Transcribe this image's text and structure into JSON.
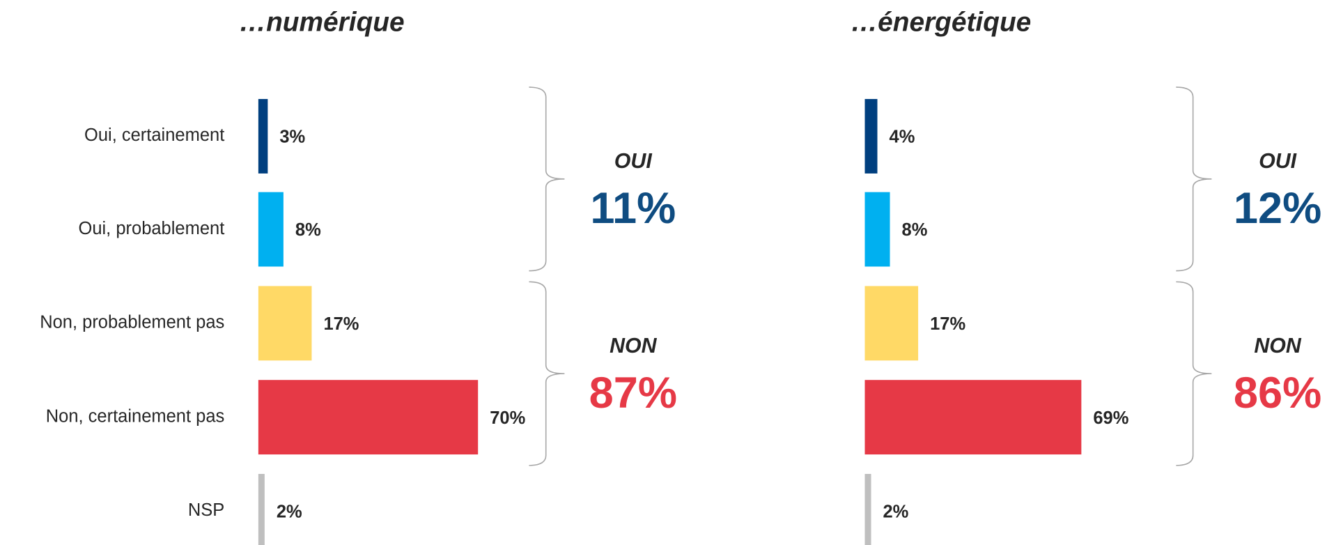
{
  "chart_data": [
    {
      "type": "bar",
      "orientation": "horizontal",
      "title": "…numérique",
      "categories": [
        "Oui, certainement",
        "Oui, probablement",
        "Non, probablement pas",
        "Non, certainement pas",
        "NSP"
      ],
      "values": [
        3,
        8,
        17,
        70,
        2
      ],
      "value_labels": [
        "3%",
        "8%",
        "17%",
        "70%",
        "2%"
      ],
      "colors": [
        "#003f7f",
        "#00b0f0",
        "#ffd966",
        "#e63946",
        "#bfbfbf"
      ],
      "groups": [
        {
          "label": "OUI",
          "value": 11,
          "value_label": "11%",
          "color": "#0f4c81"
        },
        {
          "label": "NON",
          "value": 87,
          "value_label": "87%",
          "color": "#e63946"
        }
      ]
    },
    {
      "type": "bar",
      "orientation": "horizontal",
      "title": "…énergétique",
      "categories": [
        null,
        null,
        null,
        null,
        null
      ],
      "values": [
        4,
        8,
        17,
        69,
        2
      ],
      "value_labels": [
        "4%",
        "8%",
        "17%",
        "69%",
        "2%"
      ],
      "colors": [
        "#003f7f",
        "#00b0f0",
        "#ffd966",
        "#e63946",
        "#bfbfbf"
      ],
      "groups": [
        {
          "label": "OUI",
          "value": 12,
          "value_label": "12%",
          "color": "#0f4c81"
        },
        {
          "label": "NON",
          "value": 86,
          "value_label": "86%",
          "color": "#e63946"
        }
      ]
    }
  ]
}
